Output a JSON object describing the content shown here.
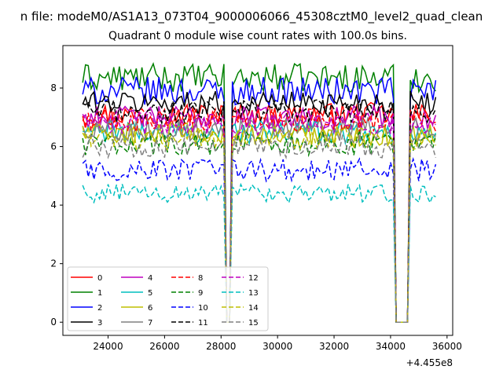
{
  "figure": {
    "suptitle": "n file: modeM0/AS1A13_073T04_9000006066_45308cztM0_level2_quad_clean",
    "title": "Quadrant 0 module wise count rates with 100.0s bins."
  },
  "chart_data": {
    "type": "line",
    "title": "Quadrant 0 module wise count rates with 100.0s bins.",
    "xlabel": "",
    "ylabel": "",
    "x_offset_label": "+4.455e8",
    "xlim": [
      22400,
      36200
    ],
    "ylim": [
      -0.45,
      9.45
    ],
    "xticks": [
      24000,
      26000,
      28000,
      30000,
      32000,
      34000,
      36000
    ],
    "yticks": [
      0,
      2,
      4,
      6,
      8
    ],
    "grid": false,
    "legend_position": "lower-left",
    "legend_columns": 4,
    "bin_seconds": 100,
    "x_range": [
      23100,
      35600
    ],
    "gaps": [
      [
        28150,
        28300
      ],
      [
        34150,
        34650
      ]
    ],
    "series": [
      {
        "name": "0",
        "color": "#ff0000",
        "dash": "solid",
        "mean": 7.1,
        "noise": 0.25
      },
      {
        "name": "1",
        "color": "#008000",
        "dash": "solid",
        "mean": 8.35,
        "noise": 0.3
      },
      {
        "name": "2",
        "color": "#0000ff",
        "dash": "solid",
        "mean": 7.9,
        "noise": 0.3
      },
      {
        "name": "3",
        "color": "#000000",
        "dash": "solid",
        "mean": 7.5,
        "noise": 0.25
      },
      {
        "name": "4",
        "color": "#bf00bf",
        "dash": "solid",
        "mean": 7.0,
        "noise": 0.25
      },
      {
        "name": "5",
        "color": "#00bfbf",
        "dash": "solid",
        "mean": 6.5,
        "noise": 0.25
      },
      {
        "name": "6",
        "color": "#bfbf00",
        "dash": "solid",
        "mean": 6.4,
        "noise": 0.25
      },
      {
        "name": "7",
        "color": "#808080",
        "dash": "solid",
        "mean": 6.6,
        "noise": 0.25
      },
      {
        "name": "8",
        "color": "#ff0000",
        "dash": "dashed",
        "mean": 6.9,
        "noise": 0.25
      },
      {
        "name": "9",
        "color": "#008000",
        "dash": "dashed",
        "mean": 6.1,
        "noise": 0.25
      },
      {
        "name": "10",
        "color": "#0000ff",
        "dash": "dashed",
        "mean": 5.2,
        "noise": 0.25
      },
      {
        "name": "11",
        "color": "#000000",
        "dash": "dashed",
        "mean": 7.2,
        "noise": 0.25
      },
      {
        "name": "12",
        "color": "#bf00bf",
        "dash": "dashed",
        "mean": 6.8,
        "noise": 0.25
      },
      {
        "name": "13",
        "color": "#00bfbf",
        "dash": "dashed",
        "mean": 4.4,
        "noise": 0.2
      },
      {
        "name": "14",
        "color": "#bfbf00",
        "dash": "dashed",
        "mean": 6.3,
        "noise": 0.25
      },
      {
        "name": "15",
        "color": "#808080",
        "dash": "dashed",
        "mean": 6.0,
        "noise": 0.25
      }
    ]
  }
}
